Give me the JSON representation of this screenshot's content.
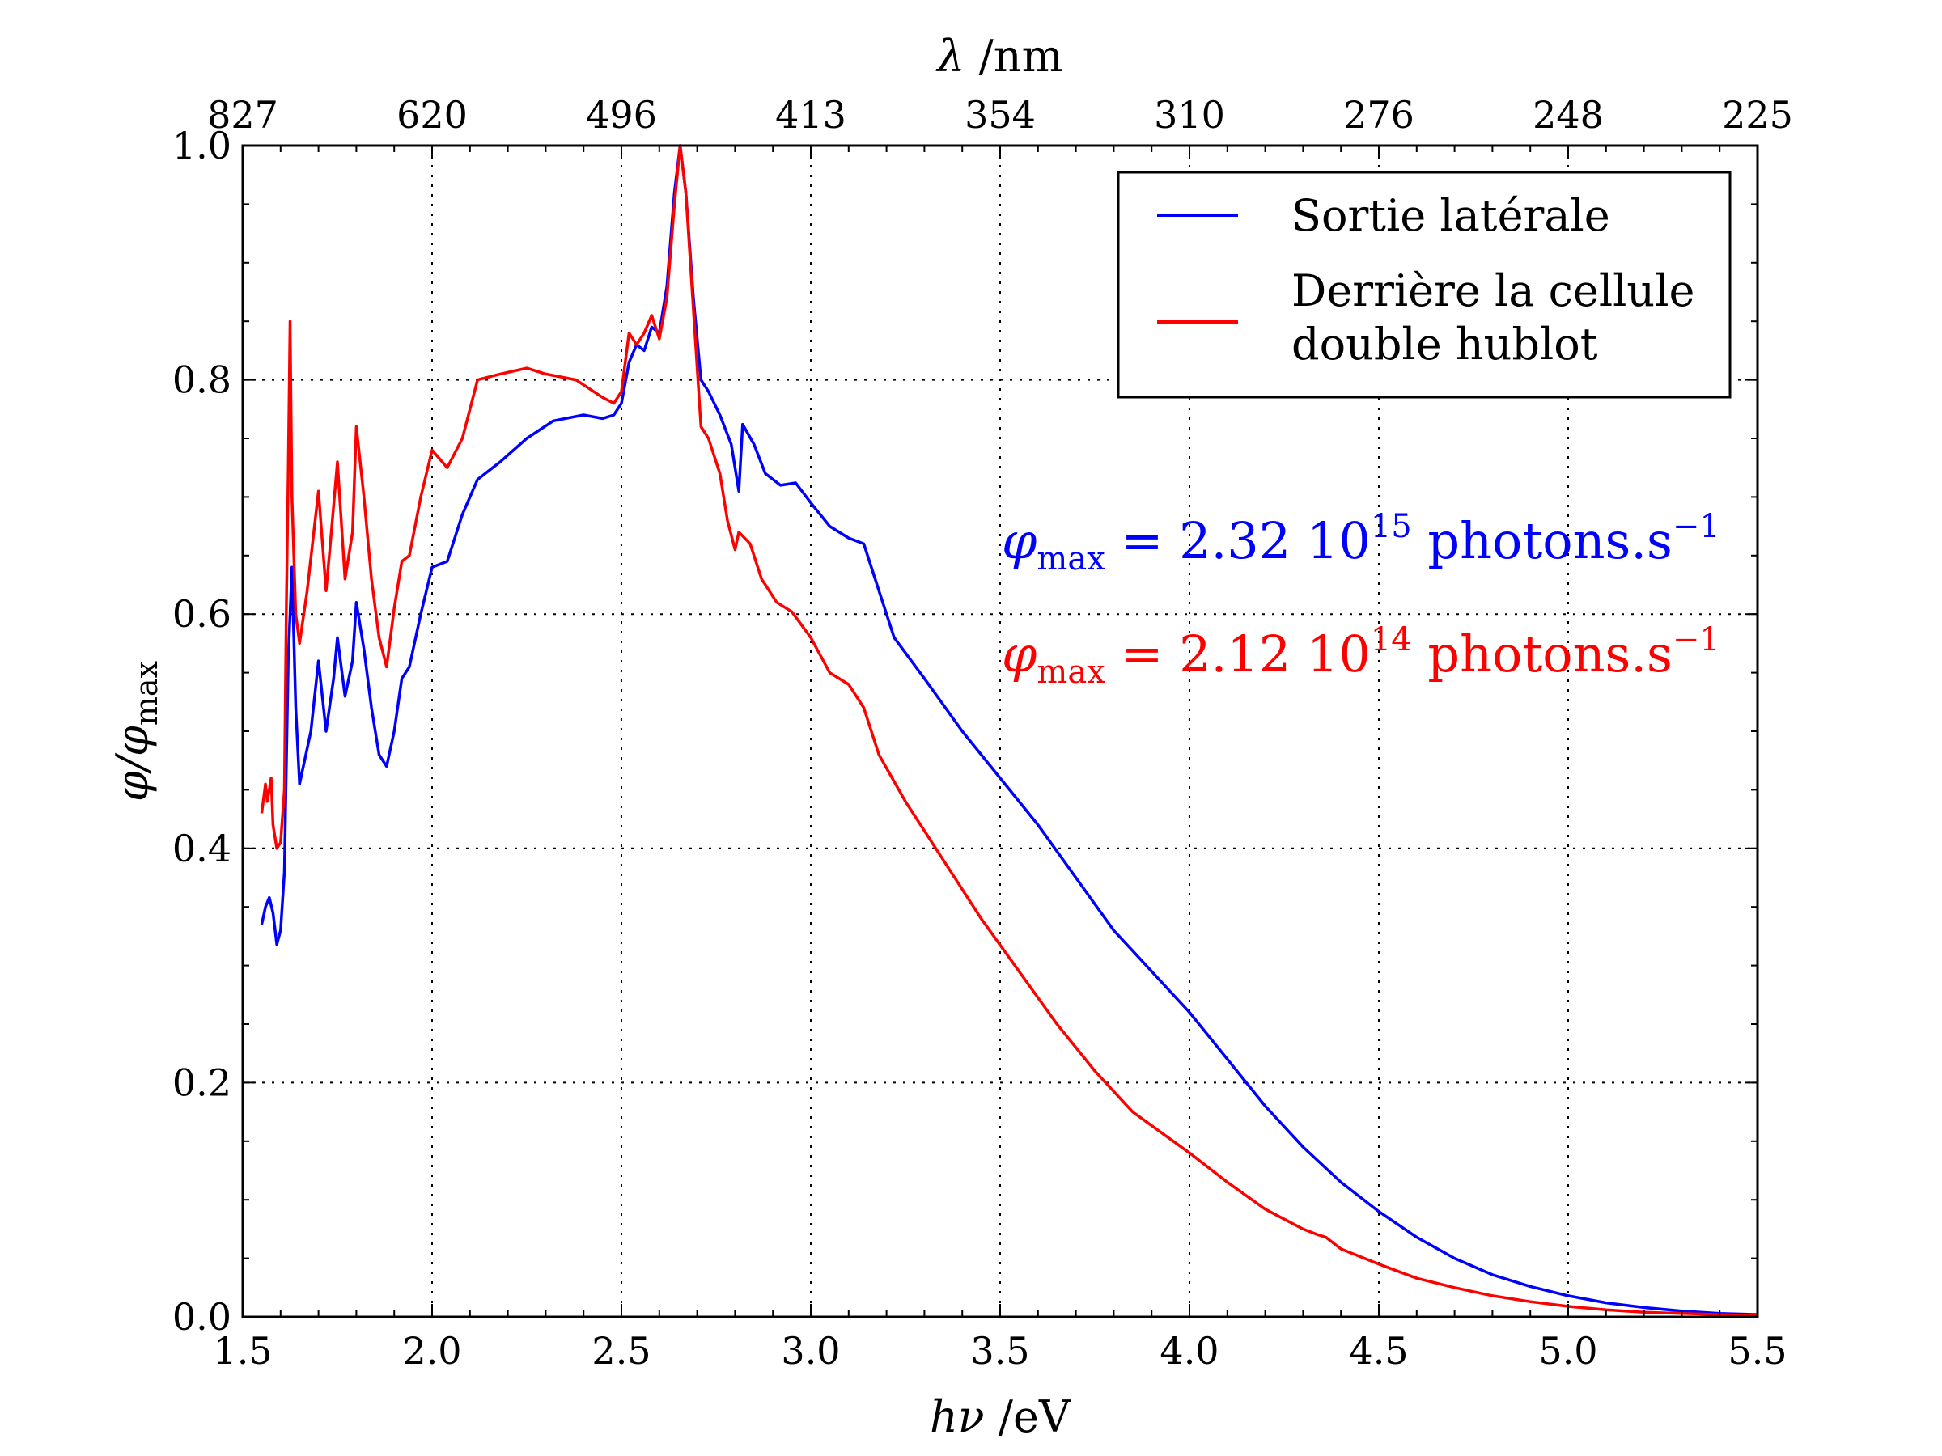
{
  "chart_data": {
    "type": "line",
    "xlabel": "hν /eV",
    "ylabel": "φ/φmax",
    "top_axis_label": "λ /nm",
    "xlim": [
      1.5,
      5.5
    ],
    "ylim": [
      0.0,
      1.0
    ],
    "grid": true,
    "legend_position": "top-right",
    "x_ticks": [
      "1.5",
      "2.0",
      "2.5",
      "3.0",
      "3.5",
      "4.0",
      "4.5",
      "5.0",
      "5.5"
    ],
    "y_ticks": [
      "0.0",
      "0.2",
      "0.4",
      "0.6",
      "0.8",
      "1.0"
    ],
    "top_ticks": [
      {
        "label": "827",
        "x": 1.5
      },
      {
        "label": "620",
        "x": 2.0
      },
      {
        "label": "496",
        "x": 2.5
      },
      {
        "label": "413",
        "x": 3.0
      },
      {
        "label": "354",
        "x": 3.5
      },
      {
        "label": "310",
        "x": 4.0
      },
      {
        "label": "276",
        "x": 4.5
      },
      {
        "label": "248",
        "x": 5.0
      },
      {
        "label": "225",
        "x": 5.5
      }
    ],
    "series": [
      {
        "name": "Sortie latérale",
        "color": "#0000ff",
        "points": [
          [
            1.55,
            0.335
          ],
          [
            1.56,
            0.35
          ],
          [
            1.57,
            0.358
          ],
          [
            1.58,
            0.345
          ],
          [
            1.59,
            0.318
          ],
          [
            1.6,
            0.33
          ],
          [
            1.61,
            0.38
          ],
          [
            1.62,
            0.56
          ],
          [
            1.63,
            0.64
          ],
          [
            1.64,
            0.52
          ],
          [
            1.65,
            0.455
          ],
          [
            1.66,
            0.47
          ],
          [
            1.68,
            0.5
          ],
          [
            1.7,
            0.56
          ],
          [
            1.72,
            0.5
          ],
          [
            1.74,
            0.545
          ],
          [
            1.75,
            0.58
          ],
          [
            1.77,
            0.53
          ],
          [
            1.79,
            0.56
          ],
          [
            1.8,
            0.61
          ],
          [
            1.82,
            0.57
          ],
          [
            1.84,
            0.52
          ],
          [
            1.86,
            0.48
          ],
          [
            1.88,
            0.47
          ],
          [
            1.9,
            0.5
          ],
          [
            1.92,
            0.545
          ],
          [
            1.94,
            0.555
          ],
          [
            1.97,
            0.6
          ],
          [
            2.0,
            0.64
          ],
          [
            2.04,
            0.645
          ],
          [
            2.08,
            0.685
          ],
          [
            2.12,
            0.715
          ],
          [
            2.18,
            0.73
          ],
          [
            2.25,
            0.75
          ],
          [
            2.32,
            0.765
          ],
          [
            2.4,
            0.77
          ],
          [
            2.45,
            0.767
          ],
          [
            2.48,
            0.77
          ],
          [
            2.5,
            0.78
          ],
          [
            2.52,
            0.815
          ],
          [
            2.54,
            0.83
          ],
          [
            2.56,
            0.825
          ],
          [
            2.58,
            0.845
          ],
          [
            2.6,
            0.84
          ],
          [
            2.62,
            0.88
          ],
          [
            2.64,
            0.96
          ],
          [
            2.655,
            1.0
          ],
          [
            2.67,
            0.96
          ],
          [
            2.69,
            0.87
          ],
          [
            2.71,
            0.8
          ],
          [
            2.73,
            0.79
          ],
          [
            2.76,
            0.77
          ],
          [
            2.79,
            0.745
          ],
          [
            2.81,
            0.705
          ],
          [
            2.82,
            0.762
          ],
          [
            2.85,
            0.745
          ],
          [
            2.88,
            0.72
          ],
          [
            2.92,
            0.71
          ],
          [
            2.96,
            0.712
          ],
          [
            3.0,
            0.695
          ],
          [
            3.05,
            0.675
          ],
          [
            3.1,
            0.665
          ],
          [
            3.14,
            0.66
          ],
          [
            3.18,
            0.62
          ],
          [
            3.22,
            0.58
          ],
          [
            3.3,
            0.545
          ],
          [
            3.4,
            0.5
          ],
          [
            3.5,
            0.46
          ],
          [
            3.6,
            0.42
          ],
          [
            3.7,
            0.375
          ],
          [
            3.8,
            0.33
          ],
          [
            3.9,
            0.295
          ],
          [
            4.0,
            0.26
          ],
          [
            4.1,
            0.22
          ],
          [
            4.2,
            0.18
          ],
          [
            4.3,
            0.145
          ],
          [
            4.4,
            0.115
          ],
          [
            4.5,
            0.09
          ],
          [
            4.6,
            0.068
          ],
          [
            4.7,
            0.05
          ],
          [
            4.8,
            0.036
          ],
          [
            4.9,
            0.026
          ],
          [
            5.0,
            0.018
          ],
          [
            5.1,
            0.012
          ],
          [
            5.2,
            0.008
          ],
          [
            5.3,
            0.005
          ],
          [
            5.4,
            0.003
          ],
          [
            5.5,
            0.002
          ]
        ]
      },
      {
        "name": "Derrière la cellule double hublot",
        "color": "#ff0000",
        "points": [
          [
            1.55,
            0.43
          ],
          [
            1.56,
            0.455
          ],
          [
            1.565,
            0.44
          ],
          [
            1.575,
            0.46
          ],
          [
            1.58,
            0.42
          ],
          [
            1.59,
            0.4
          ],
          [
            1.6,
            0.405
          ],
          [
            1.61,
            0.45
          ],
          [
            1.615,
            0.6
          ],
          [
            1.62,
            0.72
          ],
          [
            1.625,
            0.85
          ],
          [
            1.63,
            0.7
          ],
          [
            1.64,
            0.6
          ],
          [
            1.65,
            0.575
          ],
          [
            1.67,
            0.62
          ],
          [
            1.7,
            0.705
          ],
          [
            1.72,
            0.62
          ],
          [
            1.73,
            0.655
          ],
          [
            1.75,
            0.73
          ],
          [
            1.77,
            0.63
          ],
          [
            1.79,
            0.67
          ],
          [
            1.8,
            0.76
          ],
          [
            1.82,
            0.7
          ],
          [
            1.84,
            0.63
          ],
          [
            1.86,
            0.58
          ],
          [
            1.88,
            0.555
          ],
          [
            1.9,
            0.605
          ],
          [
            1.92,
            0.645
          ],
          [
            1.94,
            0.65
          ],
          [
            1.97,
            0.7
          ],
          [
            2.0,
            0.74
          ],
          [
            2.04,
            0.725
          ],
          [
            2.08,
            0.75
          ],
          [
            2.12,
            0.8
          ],
          [
            2.18,
            0.805
          ],
          [
            2.25,
            0.81
          ],
          [
            2.3,
            0.805
          ],
          [
            2.38,
            0.8
          ],
          [
            2.45,
            0.785
          ],
          [
            2.48,
            0.78
          ],
          [
            2.5,
            0.79
          ],
          [
            2.52,
            0.84
          ],
          [
            2.54,
            0.83
          ],
          [
            2.56,
            0.84
          ],
          [
            2.58,
            0.855
          ],
          [
            2.6,
            0.835
          ],
          [
            2.62,
            0.87
          ],
          [
            2.64,
            0.95
          ],
          [
            2.655,
            1.0
          ],
          [
            2.67,
            0.96
          ],
          [
            2.69,
            0.86
          ],
          [
            2.71,
            0.76
          ],
          [
            2.73,
            0.75
          ],
          [
            2.76,
            0.72
          ],
          [
            2.78,
            0.68
          ],
          [
            2.8,
            0.655
          ],
          [
            2.81,
            0.67
          ],
          [
            2.84,
            0.66
          ],
          [
            2.87,
            0.63
          ],
          [
            2.91,
            0.61
          ],
          [
            2.95,
            0.602
          ],
          [
            3.0,
            0.58
          ],
          [
            3.05,
            0.55
          ],
          [
            3.1,
            0.54
          ],
          [
            3.14,
            0.52
          ],
          [
            3.18,
            0.48
          ],
          [
            3.25,
            0.44
          ],
          [
            3.35,
            0.39
          ],
          [
            3.45,
            0.34
          ],
          [
            3.55,
            0.295
          ],
          [
            3.65,
            0.25
          ],
          [
            3.75,
            0.21
          ],
          [
            3.85,
            0.175
          ],
          [
            4.0,
            0.14
          ],
          [
            4.1,
            0.115
          ],
          [
            4.2,
            0.092
          ],
          [
            4.3,
            0.075
          ],
          [
            4.34,
            0.07
          ],
          [
            4.36,
            0.068
          ],
          [
            4.4,
            0.058
          ],
          [
            4.5,
            0.045
          ],
          [
            4.6,
            0.033
          ],
          [
            4.7,
            0.025
          ],
          [
            4.8,
            0.018
          ],
          [
            4.9,
            0.013
          ],
          [
            5.0,
            0.009
          ],
          [
            5.1,
            0.006
          ],
          [
            5.2,
            0.004
          ],
          [
            5.3,
            0.003
          ],
          [
            5.4,
            0.002
          ],
          [
            5.5,
            0.001
          ]
        ]
      }
    ],
    "annotations": [
      {
        "text": "φmax = 2.32 10^15 photons.s^-1",
        "color": "#0000ff"
      },
      {
        "text": "φmax = 2.12 10^14 photons.s^-1",
        "color": "#ff0000"
      }
    ]
  },
  "texts": {
    "xlabel_main": "hν",
    "xlabel_unit": " /eV",
    "toplabel_main": "λ",
    "toplabel_unit": " /nm",
    "ylabel_phi": "φ/φ",
    "ylabel_sub": "max",
    "legend_1": "Sortie latérale",
    "legend_2_line1": "Derrière la cellule",
    "legend_2_line2": "double hublot",
    "annot1_phi": "φ",
    "annot1_sub": "max",
    "annot1_eq": " = 2.32 10",
    "annot1_exp": "15",
    "annot1_unit": " photons.s",
    "annot1_unit_exp": "−1",
    "annot2_phi": "φ",
    "annot2_sub": "max",
    "annot2_eq": " = 2.12 10",
    "annot2_exp": "14",
    "annot2_unit": " photons.s",
    "annot2_unit_exp": "−1"
  }
}
